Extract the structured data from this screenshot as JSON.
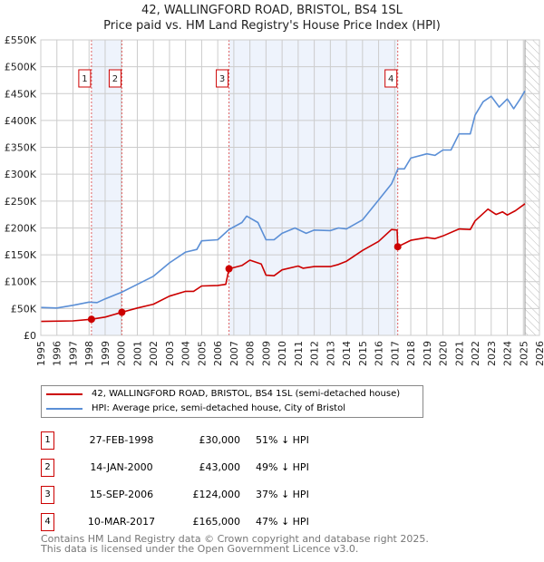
{
  "chart_data": {
    "type": "line",
    "title": "42, WALLINGFORD ROAD, BRISTOL, BS4 1SL",
    "subtitle": "Price paid vs. HM Land Registry's House Price Index (HPI)",
    "xlim": [
      1995,
      2026
    ],
    "ylim": [
      0,
      550000
    ],
    "x_ticks": [
      "1995",
      "1996",
      "1997",
      "1998",
      "1999",
      "2000",
      "2001",
      "2002",
      "2003",
      "2004",
      "2005",
      "2006",
      "2007",
      "2008",
      "2009",
      "2010",
      "2011",
      "2012",
      "2013",
      "2014",
      "2015",
      "2016",
      "2017",
      "2018",
      "2019",
      "2020",
      "2021",
      "2022",
      "2023",
      "2024",
      "2025",
      "2026"
    ],
    "y_ticks": [
      "£0",
      "£50K",
      "£100K",
      "£150K",
      "£200K",
      "£250K",
      "£300K",
      "£350K",
      "£400K",
      "£450K",
      "£500K",
      "£550K"
    ],
    "grid": true,
    "colors": {
      "price": "#cc0000",
      "hpi": "#5b8fd6",
      "band": "#eef3fc",
      "marker_line": "#e06060"
    },
    "series": [
      {
        "name": "42, WALLINGFORD ROAD, BRISTOL, BS4 1SL (semi-detached house)",
        "key": "price",
        "x": [
          1995,
          1997,
          1998.15,
          1999,
          2000.04,
          2001,
          2002,
          2003,
          2004,
          2004.5,
          2005,
          2006,
          2006.5,
          2006.7,
          2007.5,
          2008,
          2008.7,
          2009,
          2009.5,
          2010,
          2011,
          2011.3,
          2012,
          2013,
          2013.5,
          2014,
          2015,
          2016,
          2016.8,
          2017.15,
          2017.19,
          2018,
          2019,
          2019.5,
          2020,
          2021,
          2021.7,
          2022,
          2022.8,
          2023.3,
          2023.7,
          2024,
          2024.5,
          2025.1
        ],
        "y": [
          26000,
          27000,
          30000,
          34000,
          43000,
          51000,
          58000,
          73000,
          82000,
          82000,
          92000,
          93000,
          95000,
          124000,
          130000,
          140000,
          133000,
          112000,
          111000,
          122000,
          129000,
          125000,
          128000,
          128000,
          132000,
          138000,
          158000,
          175000,
          197000,
          196000,
          165000,
          177000,
          182000,
          180000,
          185000,
          198000,
          197000,
          213000,
          235000,
          225000,
          230000,
          224000,
          232000,
          245000
        ]
      },
      {
        "name": "HPI: Average price, semi-detached house, City of Bristol",
        "key": "hpi",
        "x": [
          1995,
          1996,
          1997,
          1998,
          1998.5,
          1999,
          2000,
          2001,
          2002,
          2003,
          2004,
          2004.7,
          2005,
          2006,
          2006.7,
          2007.5,
          2007.8,
          2008.5,
          2009,
          2009.5,
          2010,
          2010.8,
          2011.5,
          2012,
          2013,
          2013.5,
          2014,
          2015,
          2016,
          2016.8,
          2017.2,
          2017.6,
          2018,
          2019,
          2019.5,
          2020,
          2020.5,
          2021,
          2021.7,
          2022,
          2022.5,
          2023,
          2023.5,
          2024,
          2024.4,
          2024.8,
          2025.1
        ],
        "y": [
          52000,
          51000,
          56000,
          62000,
          61000,
          68000,
          80000,
          95000,
          110000,
          135000,
          155000,
          160000,
          176000,
          178000,
          197000,
          210000,
          222000,
          210000,
          178000,
          178000,
          190000,
          200000,
          190000,
          196000,
          195000,
          200000,
          198000,
          215000,
          252000,
          282000,
          310000,
          310000,
          330000,
          338000,
          335000,
          345000,
          345000,
          375000,
          375000,
          410000,
          435000,
          445000,
          425000,
          440000,
          422000,
          440000,
          455000
        ]
      }
    ],
    "sales": [
      {
        "num": "1",
        "x": 1998.15,
        "price": 30000
      },
      {
        "num": "2",
        "x": 2000.04,
        "price": 43000
      },
      {
        "num": "3",
        "x": 2006.7,
        "price": 124000
      },
      {
        "num": "4",
        "x": 2017.19,
        "price": 165000
      }
    ],
    "shaded_ranges": [
      [
        1998.15,
        2000.04
      ],
      [
        2006.7,
        2017.19
      ]
    ],
    "forecast_from": 2025.1
  },
  "legend": {
    "price_label": "42, WALLINGFORD ROAD, BRISTOL, BS4 1SL (semi-detached house)",
    "hpi_label": "HPI: Average price, semi-detached house, City of Bristol"
  },
  "table": [
    {
      "num": "1",
      "date": "27-FEB-1998",
      "price": "£30,000",
      "hpi": "51% ↓ HPI"
    },
    {
      "num": "2",
      "date": "14-JAN-2000",
      "price": "£43,000",
      "hpi": "49% ↓ HPI"
    },
    {
      "num": "3",
      "date": "15-SEP-2006",
      "price": "£124,000",
      "hpi": "37% ↓ HPI"
    },
    {
      "num": "4",
      "date": "10-MAR-2017",
      "price": "£165,000",
      "hpi": "47% ↓ HPI"
    }
  ],
  "footer": {
    "line1": "Contains HM Land Registry data © Crown copyright and database right 2025.",
    "line2": "This data is licensed under the Open Government Licence v3.0."
  }
}
